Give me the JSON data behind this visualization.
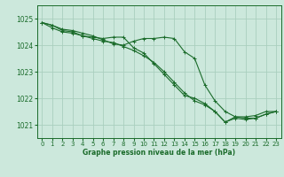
{
  "title": "Graphe pression niveau de la mer (hPa)",
  "bg_color": "#cce8dc",
  "grid_color": "#aacfbf",
  "line_color": "#1a6b2a",
  "x_ticks": [
    0,
    1,
    2,
    3,
    4,
    5,
    6,
    7,
    8,
    9,
    10,
    11,
    12,
    13,
    14,
    15,
    16,
    17,
    18,
    19,
    20,
    21,
    22,
    23
  ],
  "y_ticks": [
    1021,
    1022,
    1023,
    1024,
    1025
  ],
  "ylim": [
    1020.5,
    1025.5
  ],
  "xlim": [
    -0.5,
    23.5
  ],
  "series1": [
    1024.85,
    1024.75,
    1024.6,
    1024.55,
    1024.45,
    1024.35,
    1024.2,
    1024.05,
    1024.0,
    1024.15,
    1024.25,
    1024.25,
    1024.3,
    1024.25,
    1023.75,
    1023.5,
    1022.5,
    1021.9,
    1021.5,
    1021.3,
    1021.3,
    1021.35,
    1021.5,
    1021.5
  ],
  "series2": [
    1024.85,
    1024.75,
    1024.55,
    1024.5,
    1024.35,
    1024.3,
    1024.25,
    1024.3,
    1024.3,
    1023.9,
    1023.7,
    1023.3,
    1022.9,
    1022.5,
    1022.1,
    1022.0,
    1021.8,
    1021.5,
    1021.1,
    1021.3,
    1021.25,
    1021.25,
    1021.4,
    1021.5
  ],
  "series3": [
    1024.85,
    1024.65,
    1024.5,
    1024.45,
    1024.35,
    1024.25,
    1024.15,
    1024.1,
    1023.95,
    1023.8,
    1023.6,
    1023.35,
    1023.0,
    1022.6,
    1022.2,
    1021.9,
    1021.75,
    1021.5,
    1021.1,
    1021.25,
    1021.2,
    1021.25,
    1021.4,
    1021.5
  ],
  "title_fontsize": 5.5,
  "tick_fontsize": 5.0,
  "ytick_fontsize": 5.5
}
